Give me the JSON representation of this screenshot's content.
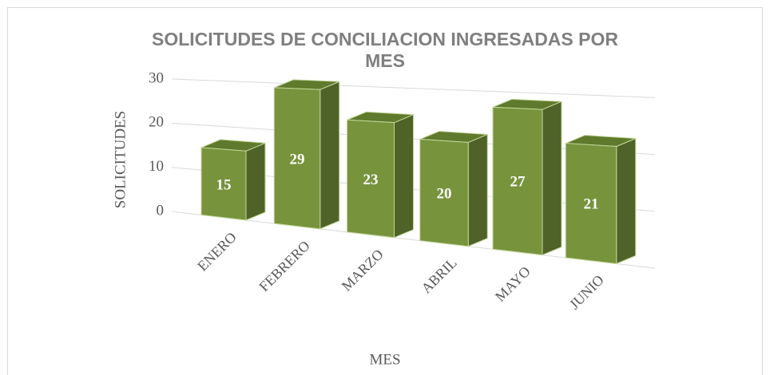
{
  "chart_data": {
    "type": "bar3d",
    "title": "SOLICITUDES DE CONCILIACION INGRESADAS POR MES",
    "x_label": "MES",
    "y_label": "SOLICITUDES",
    "categories": [
      "ENERO",
      "FEBRERO",
      "MARZO",
      "ABRIL",
      "MAYO",
      "JUNIO"
    ],
    "values": [
      15,
      29,
      23,
      20,
      27,
      21
    ],
    "color": "#77933c",
    "ylim": [
      0,
      30
    ],
    "yticks": [
      0,
      10,
      20,
      30
    ],
    "grid": true
  }
}
